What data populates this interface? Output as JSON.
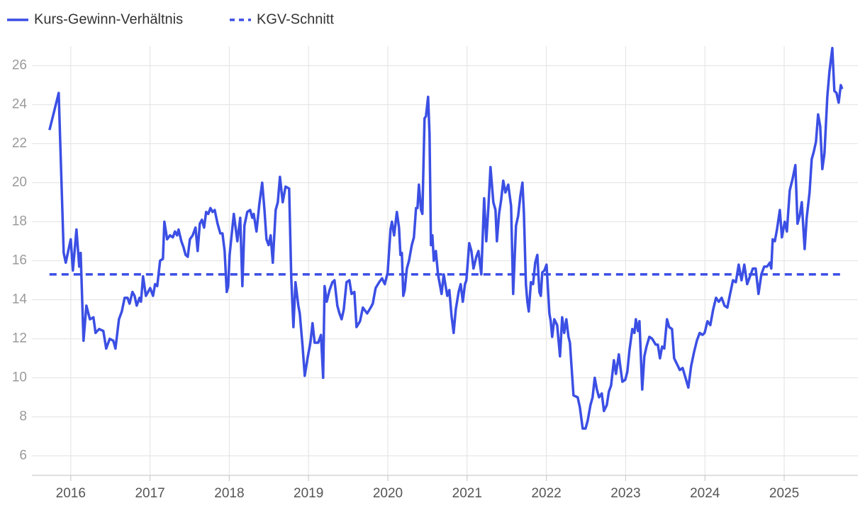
{
  "chart_data": {
    "type": "line",
    "ylim": [
      5,
      27
    ],
    "yticks": [
      6,
      8,
      10,
      12,
      14,
      16,
      18,
      20,
      22,
      24,
      26
    ],
    "xlim": [
      2015.51,
      2025.93
    ],
    "xticks": [
      2016,
      2017,
      2018,
      2019,
      2020,
      2021,
      2022,
      2023,
      2024,
      2025
    ],
    "grid": true,
    "legend": "top-left",
    "series": [
      {
        "name": "Kurs-Gewinn-Verhältnis",
        "color": "#3b4fe4",
        "style": "solid",
        "x": [
          2015.732,
          2015.848,
          2015.911,
          2015.937,
          2016.0,
          2016.027,
          2016.072,
          2016.107,
          2016.125,
          2016.161,
          2016.197,
          2016.242,
          2016.286,
          2016.313,
          2016.358,
          2016.411,
          2016.447,
          2016.492,
          2016.537,
          2016.564,
          2016.608,
          2016.644,
          2016.68,
          2016.716,
          2016.742,
          2016.778,
          2016.805,
          2016.832,
          2016.868,
          2016.886,
          2016.912,
          2016.948,
          2017.002,
          2017.038,
          2017.064,
          2017.091,
          2017.127,
          2017.163,
          2017.181,
          2017.216,
          2017.252,
          2017.288,
          2017.315,
          2017.342,
          2017.36,
          2017.395,
          2017.422,
          2017.449,
          2017.476,
          2017.503,
          2017.538,
          2017.574,
          2017.601,
          2017.628,
          2017.655,
          2017.682,
          2017.708,
          2017.735,
          2017.762,
          2017.789,
          2017.816,
          2017.852,
          2017.887,
          2017.914,
          2017.941,
          2017.968,
          2017.986,
          2018.004,
          2018.057,
          2018.102,
          2018.138,
          2018.165,
          2018.191,
          2018.227,
          2018.263,
          2018.29,
          2018.308,
          2018.343,
          2018.379,
          2018.415,
          2018.442,
          2018.469,
          2018.496,
          2018.522,
          2018.549,
          2018.585,
          2018.612,
          2018.639,
          2018.674,
          2018.71,
          2018.755,
          2018.782,
          2018.809,
          2018.835,
          2018.871,
          2018.889,
          2018.925,
          2018.952,
          2018.987,
          2019.023,
          2019.05,
          2019.077,
          2019.122,
          2019.157,
          2019.184,
          2019.202,
          2019.229,
          2019.265,
          2019.301,
          2019.327,
          2019.363,
          2019.39,
          2019.417,
          2019.444,
          2019.479,
          2019.515,
          2019.542,
          2019.578,
          2019.605,
          2019.649,
          2019.685,
          2019.739,
          2019.784,
          2019.81,
          2019.846,
          2019.891,
          2019.927,
          2019.962,
          2019.998,
          2020.034,
          2020.052,
          2020.079,
          2020.114,
          2020.141,
          2020.159,
          2020.177,
          2020.195,
          2020.213,
          2020.24,
          2020.267,
          2020.302,
          2020.329,
          2020.356,
          2020.374,
          2020.392,
          2020.419,
          2020.436,
          2020.463,
          2020.481,
          2020.508,
          2020.526,
          2020.544,
          2020.562,
          2020.58,
          2020.606,
          2020.633,
          2020.678,
          2020.705,
          2020.75,
          2020.776,
          2020.803,
          2020.83,
          2020.857,
          2020.893,
          2020.919,
          2020.946,
          2020.973,
          2020.991,
          2021.027,
          2021.054,
          2021.081,
          2021.116,
          2021.143,
          2021.179,
          2021.215,
          2021.242,
          2021.268,
          2021.295,
          2021.331,
          2021.358,
          2021.376,
          2021.403,
          2021.429,
          2021.456,
          2021.483,
          2021.519,
          2021.555,
          2021.581,
          2021.617,
          2021.644,
          2021.671,
          2021.698,
          2021.716,
          2021.742,
          2021.76,
          2021.778,
          2021.805,
          2021.832,
          2021.859,
          2021.886,
          2021.912,
          2021.93,
          2021.948,
          2021.975,
          2022.002,
          2022.038,
          2022.055,
          2022.073,
          2022.1,
          2022.136,
          2022.172,
          2022.199,
          2022.225,
          2022.252,
          2022.279,
          2022.297,
          2022.342,
          2022.395,
          2022.422,
          2022.458,
          2022.494,
          2022.521,
          2022.556,
          2022.583,
          2022.61,
          2022.637,
          2022.664,
          2022.699,
          2022.726,
          2022.762,
          2022.789,
          2022.816,
          2022.852,
          2022.878,
          2022.914,
          2022.932,
          2022.959,
          2022.995,
          2023.021,
          2023.048,
          2023.084,
          2023.111,
          2023.129,
          2023.156,
          2023.174,
          2023.209,
          2023.236,
          2023.263,
          2023.299,
          2023.335,
          2023.379,
          2023.406,
          2023.433,
          2023.46,
          2023.487,
          2023.522,
          2023.549,
          2023.585,
          2023.612,
          2023.648,
          2023.683,
          2023.719,
          2023.755,
          2023.791,
          2023.826,
          2023.862,
          2023.898,
          2023.934,
          2023.97,
          2023.996,
          2024.032,
          2024.068,
          2024.104,
          2024.14,
          2024.175,
          2024.211,
          2024.247,
          2024.283,
          2024.318,
          2024.354,
          2024.39,
          2024.426,
          2024.462,
          2024.497,
          2024.533,
          2024.569,
          2024.605,
          2024.64,
          2024.676,
          2024.712,
          2024.748,
          2024.784,
          2024.819,
          2024.837,
          2024.855,
          2024.882,
          2024.909,
          2024.945,
          2024.971,
          2025.007,
          2025.034,
          2025.07,
          2025.106,
          2025.141,
          2025.168,
          2025.195,
          2025.222,
          2025.258,
          2025.284,
          2025.32,
          2025.347,
          2025.374,
          2025.401,
          2025.428,
          2025.454,
          2025.481,
          2025.508,
          2025.544,
          2025.571,
          2025.607,
          2025.633,
          2025.66,
          2025.687,
          2025.714,
          2025.732
        ],
        "values": [
          22.7,
          24.6,
          16.4,
          15.9,
          17.1,
          15.5,
          17.6,
          15.7,
          16.4,
          11.9,
          13.7,
          13.0,
          13.1,
          12.3,
          12.5,
          12.4,
          11.5,
          12.0,
          11.9,
          11.5,
          13.0,
          13.4,
          14.1,
          14.1,
          13.8,
          14.4,
          14.2,
          13.7,
          14.1,
          13.9,
          15.2,
          14.2,
          14.6,
          14.2,
          14.8,
          14.7,
          16.0,
          16.1,
          18.0,
          17.1,
          17.3,
          17.2,
          17.5,
          17.3,
          17.6,
          17.0,
          16.7,
          16.3,
          16.2,
          17.1,
          17.3,
          17.7,
          16.5,
          17.9,
          18.1,
          17.7,
          18.5,
          18.4,
          18.7,
          18.5,
          18.6,
          17.9,
          17.4,
          17.4,
          16.5,
          14.4,
          14.7,
          16.3,
          18.4,
          17.0,
          18.2,
          14.7,
          17.8,
          18.5,
          18.6,
          18.2,
          18.4,
          17.5,
          18.9,
          20.0,
          18.7,
          17.1,
          16.8,
          17.3,
          15.9,
          18.6,
          19.0,
          20.3,
          19.0,
          19.8,
          19.7,
          15.1,
          12.6,
          14.9,
          13.7,
          13.3,
          11.6,
          10.1,
          11.0,
          11.8,
          12.8,
          11.8,
          11.8,
          12.2,
          10.0,
          14.7,
          13.9,
          14.5,
          14.9,
          15.0,
          13.7,
          13.3,
          13.0,
          13.5,
          14.9,
          15.0,
          14.3,
          14.4,
          12.6,
          12.9,
          13.6,
          13.3,
          13.6,
          13.8,
          14.6,
          14.9,
          15.1,
          14.8,
          15.4,
          17.6,
          18.0,
          17.3,
          18.5,
          17.7,
          16.3,
          16.4,
          14.2,
          14.5,
          15.6,
          16.0,
          16.8,
          17.2,
          18.7,
          18.7,
          19.9,
          18.6,
          18.4,
          23.3,
          23.4,
          24.4,
          22.5,
          16.8,
          17.3,
          16.0,
          16.5,
          15.3,
          14.3,
          15.3,
          14.2,
          14.5,
          13.2,
          12.3,
          13.5,
          14.4,
          14.8,
          13.9,
          14.8,
          15.0,
          16.9,
          16.5,
          15.6,
          16.2,
          16.5,
          15.3,
          19.2,
          17.0,
          18.7,
          20.8,
          19.0,
          18.6,
          17.0,
          18.4,
          19.1,
          20.1,
          19.5,
          19.9,
          18.8,
          14.3,
          17.8,
          18.3,
          19.3,
          20.0,
          18.5,
          14.8,
          13.9,
          13.4,
          14.9,
          14.8,
          15.9,
          16.3,
          14.4,
          14.2,
          15.4,
          15.5,
          15.8,
          13.3,
          12.9,
          12.1,
          13.0,
          12.7,
          11.1,
          13.1,
          12.3,
          13.0,
          12.1,
          11.8,
          9.1,
          9.0,
          8.5,
          7.4,
          7.4,
          7.8,
          8.6,
          9.0,
          10.0,
          9.4,
          9.0,
          9.2,
          8.3,
          8.6,
          9.3,
          9.6,
          10.9,
          10.2,
          11.2,
          10.6,
          9.8,
          9.9,
          10.3,
          11.4,
          12.5,
          12.3,
          13.0,
          12.4,
          12.9,
          9.4,
          11.1,
          11.6,
          12.1,
          12.0,
          11.7,
          11.7,
          11.0,
          11.6,
          11.5,
          13.0,
          12.6,
          12.5,
          11.0,
          10.7,
          10.4,
          10.5,
          10.0,
          9.5,
          10.6,
          11.3,
          11.9,
          12.3,
          12.2,
          12.3,
          12.9,
          12.7,
          13.5,
          14.1,
          13.9,
          14.1,
          13.7,
          13.6,
          14.3,
          15.0,
          14.9,
          15.8,
          15.0,
          15.8,
          14.8,
          15.2,
          15.6,
          15.6,
          14.3,
          15.3,
          15.7,
          15.7,
          15.9,
          15.6,
          17.1,
          17.0,
          17.6,
          18.6,
          17.2,
          18.0,
          17.5,
          19.6,
          20.2,
          20.9,
          17.9,
          18.3,
          19.0,
          16.6,
          18.2,
          19.5,
          21.2,
          21.6,
          22.1,
          23.5,
          22.9,
          20.7,
          21.5,
          24.4,
          25.7,
          26.9,
          24.7,
          24.6,
          24.1,
          25.0,
          24.8
        ]
      },
      {
        "name": "KGV-Schnitt",
        "color": "#3b4fe4",
        "style": "dashed",
        "x": [
          2015.732,
          2025.732
        ],
        "values": [
          15.3,
          15.3
        ]
      }
    ]
  }
}
